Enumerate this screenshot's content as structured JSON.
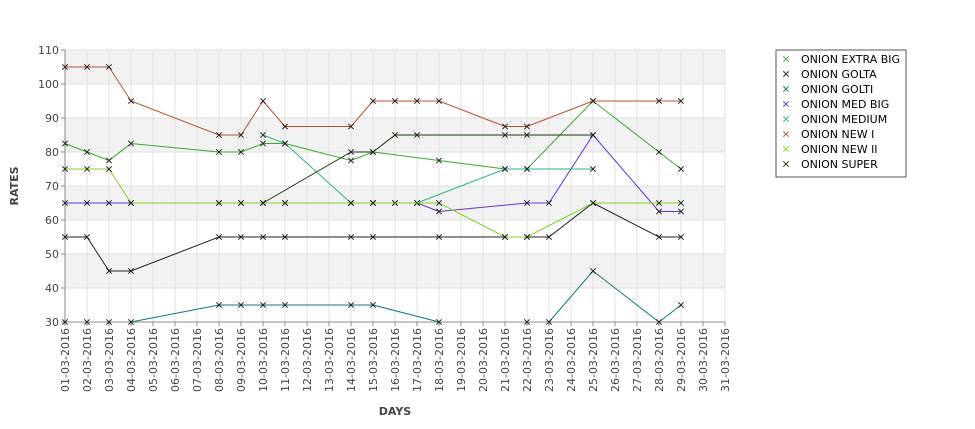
{
  "chart_data": {
    "type": "line",
    "xlabel": "DAYS",
    "ylabel": "RATES",
    "ylim": [
      30,
      110
    ],
    "yticks": [
      30,
      40,
      50,
      60,
      70,
      80,
      90,
      100,
      110
    ],
    "categories": [
      "01-03-2016",
      "02-03-2016",
      "03-03-2016",
      "04-03-2016",
      "05-03-2016",
      "06-03-2016",
      "07-03-2016",
      "08-03-2016",
      "09-03-2016",
      "10-03-2016",
      "11-03-2016",
      "12-03-2016",
      "13-03-2016",
      "14-03-2016",
      "15-03-2016",
      "16-03-2016",
      "17-03-2016",
      "18-03-2016",
      "19-03-2016",
      "20-03-2016",
      "21-03-2016",
      "22-03-2016",
      "23-03-2016",
      "24-03-2016",
      "25-03-2016",
      "26-03-2016",
      "27-03-2016",
      "28-03-2016",
      "29-03-2016",
      "30-03-2016",
      "31-03-2016"
    ],
    "grid": true,
    "legend_position": "right",
    "series": [
      {
        "name": "ONION EXTRA BIG",
        "color": "#3aa82c",
        "x": [
          "01-03-2016",
          "02-03-2016",
          "03-03-2016",
          "04-03-2016",
          "08-03-2016",
          "09-03-2016",
          "10-03-2016",
          "11-03-2016",
          "14-03-2016",
          "15-03-2016",
          "18-03-2016",
          "21-03-2016",
          "22-03-2016",
          "25-03-2016",
          "28-03-2016",
          "29-03-2016"
        ],
        "values": [
          82.5,
          80,
          77.5,
          82.5,
          80,
          80,
          82.5,
          82.5,
          77.5,
          80,
          77.5,
          75,
          75,
          95,
          80,
          75
        ]
      },
      {
        "name": "ONION GOLTA",
        "color": "#222222",
        "x": [
          "01-03-2016",
          "02-03-2016",
          "03-03-2016",
          "04-03-2016",
          "08-03-2016",
          "09-03-2016",
          "10-03-2016",
          "11-03-2016",
          "14-03-2016",
          "15-03-2016",
          "18-03-2016",
          "21-03-2016",
          "22-03-2016",
          "23-03-2016",
          "25-03-2016",
          "28-03-2016",
          "29-03-2016"
        ],
        "values": [
          55,
          55,
          45,
          45,
          55,
          55,
          55,
          55,
          55,
          55,
          55,
          55,
          55,
          55,
          65,
          55,
          55
        ]
      },
      {
        "name": "ONION GOLTI",
        "color": "#0d7a7a",
        "segments": [
          {
            "x": [
              "01-03-2016"
            ],
            "values": [
              30
            ]
          },
          {
            "x": [
              "02-03-2016"
            ],
            "values": [
              30
            ]
          },
          {
            "x": [
              "03-03-2016"
            ],
            "values": [
              30
            ]
          },
          {
            "x": [
              "04-03-2016",
              "08-03-2016",
              "09-03-2016",
              "10-03-2016",
              "11-03-2016",
              "14-03-2016",
              "15-03-2016",
              "18-03-2016"
            ],
            "values": [
              30,
              35,
              35,
              35,
              35,
              35,
              35,
              30
            ]
          },
          {
            "x": [
              "22-03-2016"
            ],
            "values": [
              30
            ]
          },
          {
            "x": [
              "23-03-2016",
              "25-03-2016",
              "28-03-2016",
              "29-03-2016"
            ],
            "values": [
              30,
              45,
              30,
              35
            ]
          }
        ]
      },
      {
        "name": "ONION MED BIG",
        "color": "#6a2fd6",
        "x": [
          "01-03-2016",
          "02-03-2016",
          "03-03-2016",
          "04-03-2016",
          "08-03-2016",
          "09-03-2016",
          "10-03-2016",
          "11-03-2016",
          "14-03-2016",
          "15-03-2016",
          "16-03-2016",
          "17-03-2016",
          "18-03-2016",
          "22-03-2016",
          "23-03-2016",
          "25-03-2016",
          "28-03-2016",
          "29-03-2016"
        ],
        "values": [
          65,
          65,
          65,
          65,
          65,
          65,
          65,
          65,
          65,
          65,
          65,
          65,
          62.5,
          65,
          65,
          85,
          62.5,
          62.5
        ]
      },
      {
        "name": "ONION MEDIUM",
        "color": "#1fb886",
        "x": [
          "10-03-2016",
          "11-03-2016",
          "14-03-2016",
          "15-03-2016",
          "16-03-2016",
          "17-03-2016",
          "21-03-2016",
          "22-03-2016",
          "25-03-2016"
        ],
        "values": [
          85,
          82.5,
          65,
          65,
          65,
          65,
          75,
          75,
          75
        ]
      },
      {
        "name": "ONION NEW I",
        "color": "#b5532f",
        "x": [
          "01-03-2016",
          "02-03-2016",
          "03-03-2016",
          "04-03-2016",
          "08-03-2016",
          "09-03-2016",
          "10-03-2016",
          "11-03-2016",
          "14-03-2016",
          "15-03-2016",
          "16-03-2016",
          "17-03-2016",
          "18-03-2016",
          "21-03-2016",
          "22-03-2016",
          "25-03-2016",
          "28-03-2016",
          "29-03-2016"
        ],
        "values": [
          105,
          105,
          105,
          95,
          85,
          85,
          95,
          87.5,
          87.5,
          95,
          95,
          95,
          95,
          87.5,
          87.5,
          95,
          95,
          95
        ]
      },
      {
        "name": "ONION NEW II",
        "color": "#7ed321",
        "x": [
          "01-03-2016",
          "02-03-2016",
          "03-03-2016",
          "04-03-2016",
          "08-03-2016",
          "09-03-2016",
          "10-03-2016",
          "11-03-2016",
          "14-03-2016",
          "15-03-2016",
          "18-03-2016",
          "21-03-2016",
          "22-03-2016",
          "25-03-2016",
          "28-03-2016",
          "29-03-2016"
        ],
        "values": [
          75,
          75,
          75,
          65,
          65,
          65,
          65,
          65,
          65,
          65,
          65,
          55,
          55,
          65,
          65,
          65
        ]
      },
      {
        "name": "ONION SUPER",
        "color": "#1a3a0a",
        "x": [
          "10-03-2016",
          "14-03-2016",
          "15-03-2016",
          "16-03-2016",
          "17-03-2016",
          "21-03-2016",
          "22-03-2016",
          "25-03-2016"
        ],
        "values": [
          65,
          80,
          80,
          85,
          85,
          85,
          85,
          85
        ]
      }
    ]
  }
}
